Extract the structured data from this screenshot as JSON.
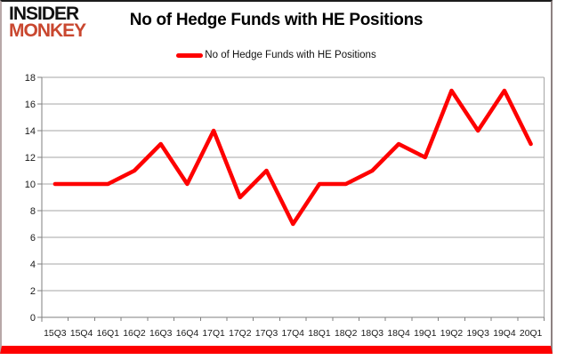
{
  "brand": {
    "line1": "INSIDER",
    "line2": "MONKEY"
  },
  "header": {
    "title": "No of Hedge Funds with HE Positions"
  },
  "legend": {
    "label": "No of Hedge Funds with HE Positions"
  },
  "colors": {
    "series": "#fe0000",
    "grid": "#a6a6a6",
    "axis": "#7f7f7f",
    "tick_text": "#1a1a1a",
    "brand_accent": "#c9472f",
    "bottom_bar": "#fe0100"
  },
  "chart_data": {
    "type": "line",
    "title": "No of Hedge Funds with HE Positions",
    "categories": [
      "15Q3",
      "15Q4",
      "16Q1",
      "16Q2",
      "16Q3",
      "16Q4",
      "17Q1",
      "17Q2",
      "17Q3",
      "17Q4",
      "18Q1",
      "18Q2",
      "18Q3",
      "18Q4",
      "19Q1",
      "19Q2",
      "19Q3",
      "19Q4",
      "20Q1"
    ],
    "series": [
      {
        "name": "No of Hedge Funds with HE Positions",
        "color": "#fe0000",
        "values": [
          10,
          10,
          10,
          11,
          13,
          10,
          14,
          9,
          11,
          7,
          10,
          10,
          11,
          13,
          12,
          17,
          14,
          17,
          13
        ]
      }
    ],
    "xlabel": "",
    "ylabel": "",
    "ylim": [
      0,
      18
    ],
    "ytick_step": 2,
    "grid": true,
    "legend_position": "top-center"
  }
}
